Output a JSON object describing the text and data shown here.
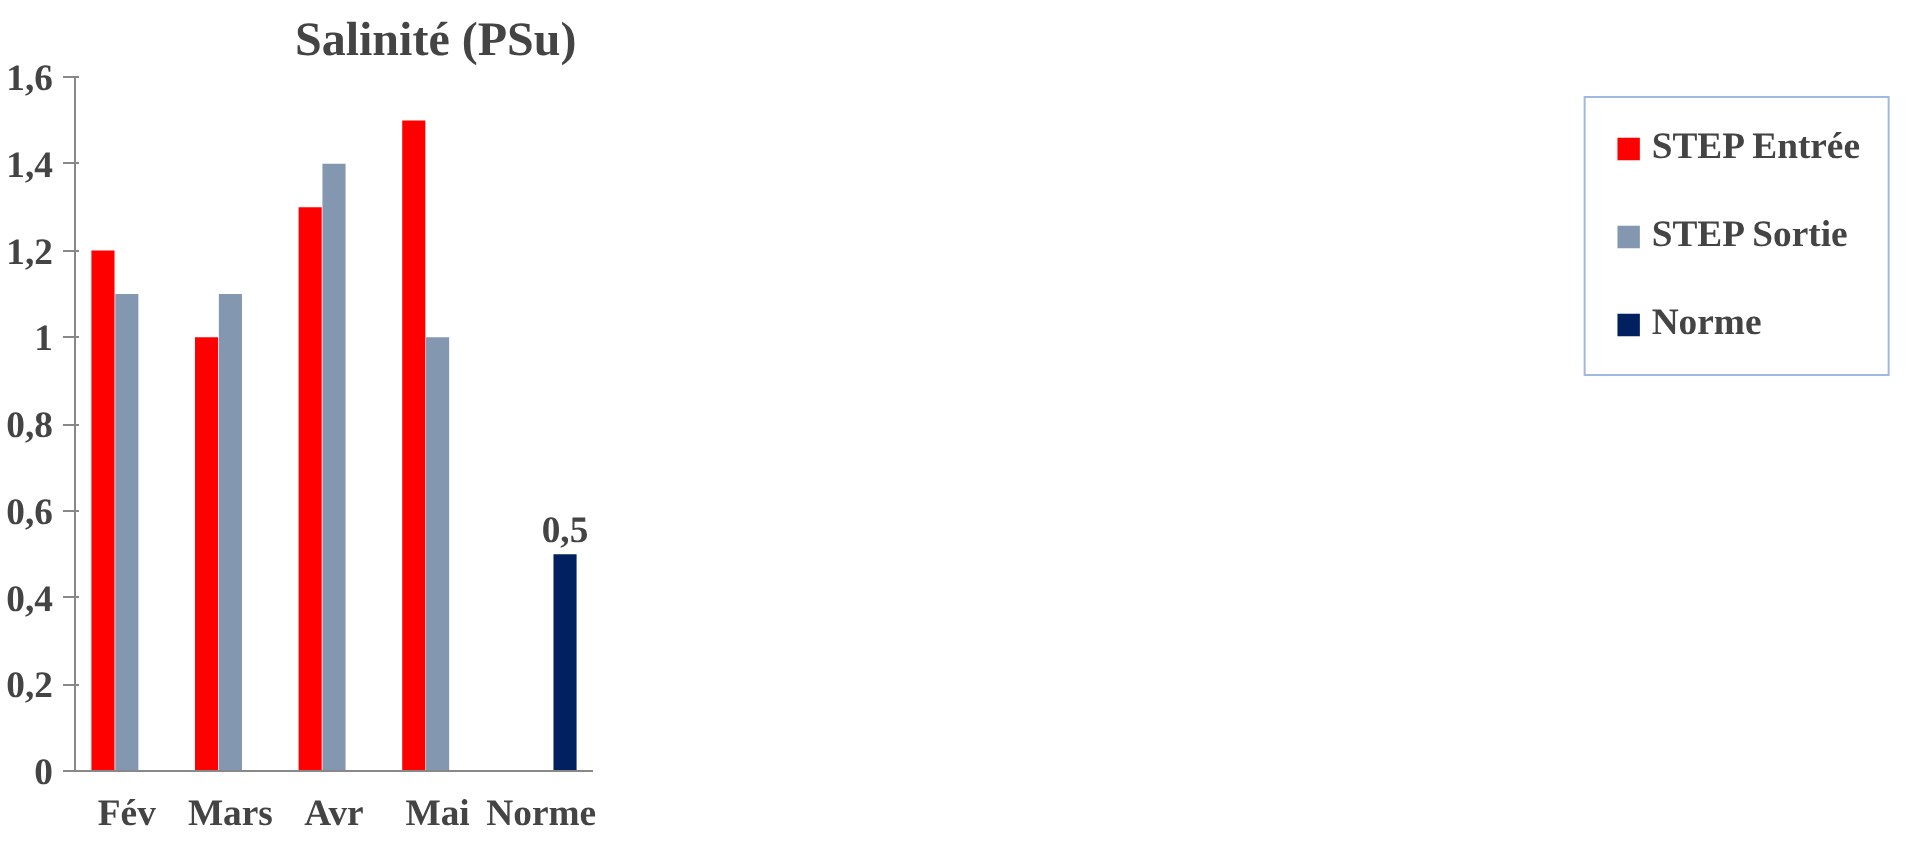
{
  "chart_data": {
    "type": "bar",
    "title": "Salinité (PSu)",
    "categories": [
      "Fév",
      "Mars",
      "Avr",
      "Mai",
      "Norme"
    ],
    "series": [
      {
        "name": "STEP Entrée",
        "color": "#ff0000",
        "values": [
          1.2,
          1.0,
          1.3,
          1.5,
          null
        ]
      },
      {
        "name": "STEP Sortie",
        "color": "#8497b0",
        "values": [
          1.1,
          1.1,
          1.4,
          1.0,
          null
        ]
      },
      {
        "name": "Norme",
        "color": "#002060",
        "values": [
          null,
          null,
          null,
          null,
          0.5
        ],
        "value_labels": [
          null,
          null,
          null,
          null,
          "0,5"
        ]
      }
    ],
    "ylim": [
      0,
      1.6
    ],
    "yticks": [
      {
        "value": 0,
        "label": "0"
      },
      {
        "value": 0.2,
        "label": "0,2"
      },
      {
        "value": 0.4,
        "label": "0,4"
      },
      {
        "value": 0.6,
        "label": "0,6"
      },
      {
        "value": 0.8,
        "label": "0,8"
      },
      {
        "value": 1,
        "label": "1"
      },
      {
        "value": 1.2,
        "label": "1,2"
      },
      {
        "value": 1.4,
        "label": "1,4"
      },
      {
        "value": 1.6,
        "label": "1,6"
      }
    ],
    "grid": false,
    "legend": "right"
  }
}
